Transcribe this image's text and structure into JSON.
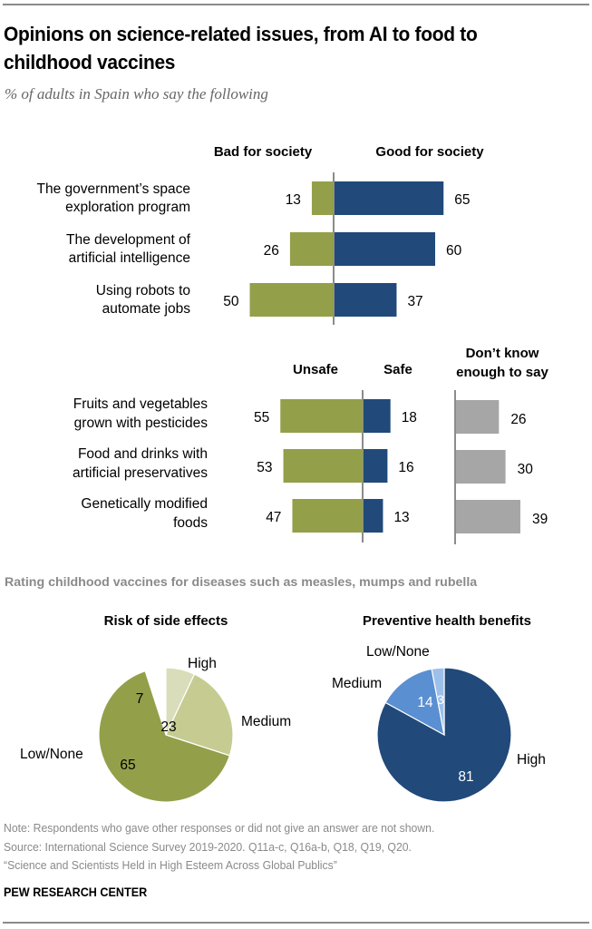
{
  "title": "Opinions on science-related issues, from AI to food to childhood vaccines",
  "subtitle": "% of adults in Spain who say the following",
  "colors": {
    "bad": "#949f4a",
    "good": "#21497a",
    "dont_know": "#a6a6a6",
    "axis": "#8c8c8c",
    "risk_high": "#d9ddb9",
    "risk_medium": "#c6cc91",
    "risk_low": "#949f4a",
    "benefit_high": "#21497a",
    "benefit_medium": "#5a8fd2",
    "benefit_low": "#9dc0ea",
    "section_label": "#8a8a8a"
  },
  "chart_data": [
    {
      "type": "bar",
      "orientation": "diverging-horizontal",
      "categories": [
        "The government’s space exploration program",
        "The development of artificial intelligence",
        "Using robots to automate jobs"
      ],
      "category_lines": [
        [
          "The government’s space",
          "exploration program"
        ],
        [
          "The development of",
          "artificial intelligence"
        ],
        [
          "Using robots to",
          "automate jobs"
        ]
      ],
      "series": [
        {
          "name": "Bad for society",
          "values": [
            13,
            26,
            50
          ]
        },
        {
          "name": "Good for society",
          "values": [
            65,
            60,
            37
          ]
        }
      ]
    },
    {
      "type": "bar",
      "orientation": "diverging-horizontal",
      "categories": [
        "Fruits and vegetables grown with pesticides",
        "Food and drinks with artificial preservatives",
        "Genetically modified foods"
      ],
      "category_lines": [
        [
          "Fruits and vegetables",
          "grown with pesticides"
        ],
        [
          "Food and drinks with",
          "artificial preservatives"
        ],
        [
          "Genetically modified",
          "foods"
        ]
      ],
      "series": [
        {
          "name": "Unsafe",
          "values": [
            55,
            53,
            47
          ]
        },
        {
          "name": "Safe",
          "values": [
            18,
            16,
            13
          ]
        },
        {
          "name": "Don’t know enough to say",
          "name_lines": [
            "Don’t know",
            "enough to say"
          ],
          "values": [
            26,
            30,
            39
          ]
        }
      ]
    },
    {
      "type": "pie",
      "title": "Risk of side effects",
      "slices": [
        {
          "label": "High",
          "value": 7
        },
        {
          "label": "Medium",
          "value": 23
        },
        {
          "label": "Low/None",
          "value": 65
        }
      ]
    },
    {
      "type": "pie",
      "title": "Preventive health benefits",
      "slices": [
        {
          "label": "High",
          "value": 81
        },
        {
          "label": "Medium",
          "value": 14
        },
        {
          "label": "Low/None",
          "value": 3
        }
      ]
    }
  ],
  "section_label": "Rating childhood vaccines for diseases such as measles, mumps and rubella",
  "notes": [
    "Note: Respondents who gave other responses or did not give an answer are not shown.",
    "Source: International Science Survey 2019-2020. Q11a-c, Q16a-b, Q18, Q19, Q20.",
    "“Science and Scientists Held in High Esteem Across Global Publics”"
  ],
  "footer": "PEW RESEARCH CENTER"
}
